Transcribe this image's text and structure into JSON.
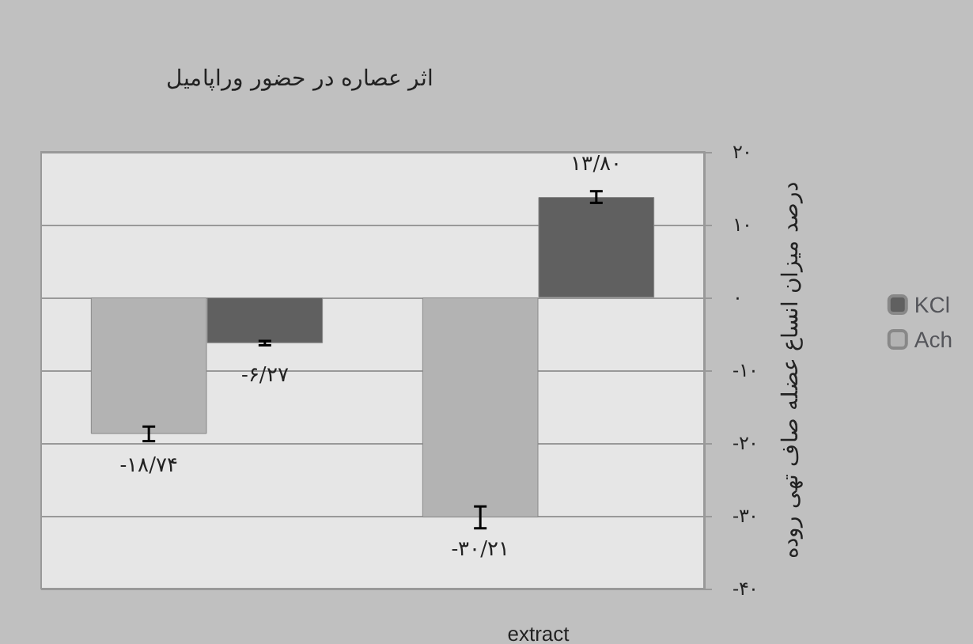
{
  "chart_data": {
    "type": "bar",
    "title": "اثر عصاره در حضور وراپامیل",
    "ylabel": "درصد میزان انساع عضله صاف تهی روده",
    "categories": [
      null,
      "extract"
    ],
    "series": [
      {
        "name": "Ach",
        "color": "#b3b3b3",
        "values": [
          -18.74,
          -30.21
        ],
        "errors": [
          1,
          1.5
        ],
        "value_labels": [
          "-۱۸/۷۴",
          "-۳۰/۲۱"
        ]
      },
      {
        "name": "KCl",
        "color": "#606060",
        "values": [
          -6.27,
          13.8
        ],
        "errors": [
          0.3,
          0.8
        ],
        "value_labels": [
          "-۶/۲۷",
          "۱۳/۸۰"
        ]
      }
    ],
    "ylim": [
      -40,
      20
    ],
    "yticks": [
      {
        "value": -40,
        "label": "-۴۰"
      },
      {
        "value": -30,
        "label": "-۳۰"
      },
      {
        "value": -20,
        "label": "-۲۰"
      },
      {
        "value": -10,
        "label": "-۱۰"
      },
      {
        "value": 0,
        "label": "۰"
      },
      {
        "value": 10,
        "label": "۱۰"
      },
      {
        "value": 20,
        "label": "۲۰"
      }
    ],
    "grid": "y",
    "legend": "right"
  }
}
